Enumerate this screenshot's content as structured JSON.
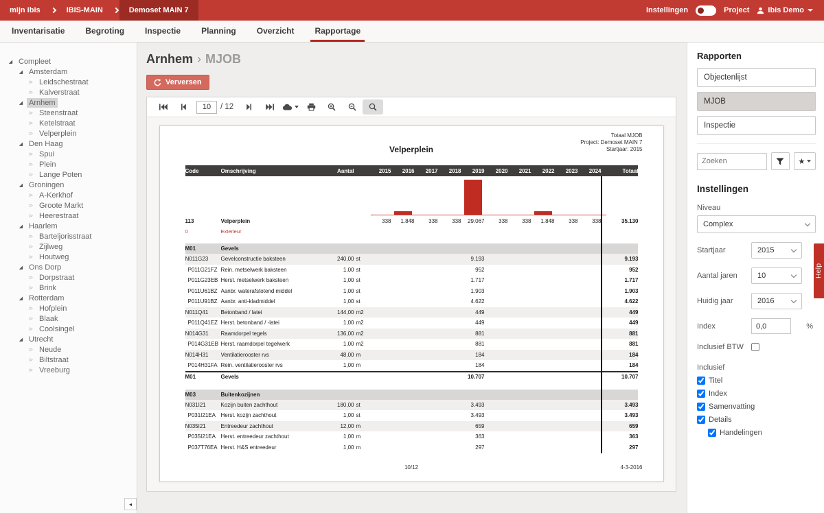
{
  "topbar": {
    "brand": "mijn ibis",
    "crumb1": "IBIS-MAIN",
    "crumb2": "Demoset MAIN 7",
    "settings_label": "Instellingen",
    "project_label": "Project",
    "user_label": "Ibis Demo"
  },
  "tabs": {
    "items": [
      "Inventarisatie",
      "Begroting",
      "Inspectie",
      "Planning",
      "Overzicht",
      "Rapportage"
    ],
    "active": "Rapportage"
  },
  "sidebar": {
    "tree": [
      {
        "label": "Compleet",
        "level": 0,
        "state": "expanded"
      },
      {
        "label": "Amsterdam",
        "level": 1,
        "state": "expanded"
      },
      {
        "label": "Leidschestraat",
        "level": 2,
        "state": "collapsed"
      },
      {
        "label": "Kalverstraat",
        "level": 2,
        "state": "collapsed"
      },
      {
        "label": "Arnhem",
        "level": 1,
        "state": "expanded",
        "selected": true
      },
      {
        "label": "Steenstraat",
        "level": 2,
        "state": "collapsed"
      },
      {
        "label": "Ketelstraat",
        "level": 2,
        "state": "collapsed"
      },
      {
        "label": "Velperplein",
        "level": 2,
        "state": "collapsed"
      },
      {
        "label": "Den Haag",
        "level": 1,
        "state": "expanded"
      },
      {
        "label": "Spui",
        "level": 2,
        "state": "collapsed"
      },
      {
        "label": "Plein",
        "level": 2,
        "state": "collapsed"
      },
      {
        "label": "Lange Poten",
        "level": 2,
        "state": "collapsed"
      },
      {
        "label": "Groningen",
        "level": 1,
        "state": "expanded"
      },
      {
        "label": "A-Kerkhof",
        "level": 2,
        "state": "collapsed"
      },
      {
        "label": "Groote Markt",
        "level": 2,
        "state": "collapsed"
      },
      {
        "label": "Heerestraat",
        "level": 2,
        "state": "collapsed"
      },
      {
        "label": "Haarlem",
        "level": 1,
        "state": "expanded"
      },
      {
        "label": "Barteljorisstraat",
        "level": 2,
        "state": "collapsed"
      },
      {
        "label": "Zijlweg",
        "level": 2,
        "state": "collapsed"
      },
      {
        "label": "Houtweg",
        "level": 2,
        "state": "collapsed"
      },
      {
        "label": "Ons Dorp",
        "level": 1,
        "state": "expanded"
      },
      {
        "label": "Dorpstraat",
        "level": 2,
        "state": "collapsed"
      },
      {
        "label": "Brink",
        "level": 2,
        "state": "collapsed"
      },
      {
        "label": "Rotterdam",
        "level": 1,
        "state": "expanded"
      },
      {
        "label": "Hofplein",
        "level": 2,
        "state": "collapsed"
      },
      {
        "label": "Blaak",
        "level": 2,
        "state": "collapsed"
      },
      {
        "label": "Coolsingel",
        "level": 2,
        "state": "collapsed"
      },
      {
        "label": "Utrecht",
        "level": 1,
        "state": "expanded"
      },
      {
        "label": "Neude",
        "level": 2,
        "state": "collapsed"
      },
      {
        "label": "Biltstraat",
        "level": 2,
        "state": "collapsed"
      },
      {
        "label": "Vreeburg",
        "level": 2,
        "state": "collapsed"
      }
    ]
  },
  "main": {
    "title": "Arnhem",
    "separator": "›",
    "subtitle": "MJOB",
    "refresh_label": "Verversen",
    "toolbar": {
      "page_value": "10",
      "page_total": "/ 12"
    }
  },
  "report": {
    "meta1": "Totaal MJOB",
    "meta2": "Project: Demoset MAIN 7",
    "meta3": "Startjaar: 2015",
    "title": "Velperplein",
    "columns": [
      "Code",
      "Omschrijving",
      "Aantal",
      "2015",
      "2016",
      "2017",
      "2018",
      "2019",
      "2020",
      "2021",
      "2022",
      "2023",
      "2024",
      "Totaal"
    ],
    "summary": {
      "code": "113",
      "name": "Velperplein",
      "values": [
        "338",
        "1.848",
        "338",
        "338",
        "29.067",
        "338",
        "338",
        "1.848",
        "338",
        "338"
      ],
      "total": "35.130"
    },
    "sub_row": {
      "code": "0",
      "name": "Exterieur"
    },
    "sections": [
      {
        "code": "M01",
        "name": "Gevels",
        "rows": [
          {
            "code": "N011G23",
            "name": "Gevelconstructie baksteen",
            "qty": "240,00",
            "unit": "st",
            "y2019": "9.193",
            "total": "9.193",
            "shaded": true
          },
          {
            "code": "P011G21FZ",
            "name": "Rein. metselwerk baksteen",
            "qty": "1,00",
            "unit": "st",
            "y2019": "952",
            "total": "952",
            "shaded": false
          },
          {
            "code": "P011G23EB",
            "name": "Herst. metselwerk baksteen",
            "qty": "1,00",
            "unit": "st",
            "y2019": "1.717",
            "total": "1.717",
            "shaded": false
          },
          {
            "code": "P011U61BZ",
            "name": "Aanbr. waterafstotend middel",
            "qty": "1,00",
            "unit": "st",
            "y2019": "1.903",
            "total": "1.903",
            "shaded": false
          },
          {
            "code": "P011U91BZ",
            "name": "Aanbr. anti-kladmiddel",
            "qty": "1,00",
            "unit": "st",
            "y2019": "4.622",
            "total": "4.622",
            "shaded": false
          },
          {
            "code": "N011Q41",
            "name": "Betonband / latei",
            "qty": "144,00",
            "unit": "m2",
            "y2019": "449",
            "total": "449",
            "shaded": true
          },
          {
            "code": "P011Q41EZ",
            "name": "Herst. betonband / -latei",
            "qty": "1,00",
            "unit": "m2",
            "y2019": "449",
            "total": "449",
            "shaded": false
          },
          {
            "code": "N014G31",
            "name": "Raamdorpel tegels",
            "qty": "136,00",
            "unit": "m2",
            "y2019": "881",
            "total": "881",
            "shaded": true
          },
          {
            "code": "P014G31EB",
            "name": "Herst. raamdorpel tegelwerk",
            "qty": "1,00",
            "unit": "m2",
            "y2019": "881",
            "total": "881",
            "shaded": false
          },
          {
            "code": "N014H31",
            "name": "Ventilatierooster rvs",
            "qty": "48,00",
            "unit": "m",
            "y2019": "184",
            "total": "184",
            "shaded": true
          },
          {
            "code": "P014H31FA",
            "name": "Rein. ventilatierooster rvs",
            "qty": "1,00",
            "unit": "m",
            "y2019": "184",
            "total": "184",
            "shaded": false
          }
        ],
        "total_row": {
          "code": "M01",
          "name": "Gevels",
          "y2019": "10.707",
          "total": "10.707"
        }
      },
      {
        "code": "M03",
        "name": "Buitenkozijnen",
        "rows": [
          {
            "code": "N031I21",
            "name": "Kozijn buiten zachthout",
            "qty": "180,00",
            "unit": "st",
            "y2019": "3.493",
            "total": "3.493",
            "shaded": true
          },
          {
            "code": "P031I21EA",
            "name": "Herst. kozijn zachthout",
            "qty": "1,00",
            "unit": "st",
            "y2019": "3.493",
            "total": "3.493",
            "shaded": false
          },
          {
            "code": "N035I21",
            "name": "Entreedeur zachthout",
            "qty": "12,00",
            "unit": "m",
            "y2019": "659",
            "total": "659",
            "shaded": true
          },
          {
            "code": "P035I21EA",
            "name": "Herst. entreedeur zachthout",
            "qty": "1,00",
            "unit": "m",
            "y2019": "363",
            "total": "363",
            "shaded": false
          },
          {
            "code": "P037T76EA",
            "name": "Herst. H&S entreedeur",
            "qty": "1,00",
            "unit": "m",
            "y2019": "297",
            "total": "297",
            "shaded": false
          }
        ]
      }
    ],
    "footer": {
      "page": "10/12",
      "date": "4-3-2016"
    }
  },
  "chart_data": {
    "type": "bar",
    "title": "Velperplein",
    "categories": [
      "2015",
      "2016",
      "2017",
      "2018",
      "2019",
      "2020",
      "2021",
      "2022",
      "2023",
      "2024"
    ],
    "values": [
      338,
      1848,
      338,
      338,
      29067,
      338,
      338,
      1848,
      338,
      338
    ],
    "total": 35130,
    "bar_color": "#c02b22",
    "legend_position": "none",
    "grid": false
  },
  "rightpanel": {
    "rapporten_title": "Rapporten",
    "reports": [
      {
        "label": "Objectenlijst",
        "selected": false
      },
      {
        "label": "MJOB",
        "selected": true
      },
      {
        "label": "Inspectie",
        "selected": false
      }
    ],
    "search_placeholder": "Zoeken",
    "instellingen_title": "Instellingen",
    "niveau_label": "Niveau",
    "niveau_value": "Complex",
    "startjaar_label": "Startjaar",
    "startjaar_value": "2015",
    "aantal_jaren_label": "Aantal jaren",
    "aantal_jaren_value": "10",
    "huidig_jaar_label": "Huidig jaar",
    "huidig_jaar_value": "2016",
    "index_label": "Index",
    "index_value": "0,0",
    "index_suffix": "%",
    "btw_label": "Inclusief BTW",
    "btw_checked": false,
    "inclusief_label": "Inclusief",
    "inclusief_options": [
      {
        "label": "Titel",
        "checked": true,
        "indent": false
      },
      {
        "label": "Index",
        "checked": true,
        "indent": false
      },
      {
        "label": "Samenvatting",
        "checked": true,
        "indent": false
      },
      {
        "label": "Details",
        "checked": true,
        "indent": false
      },
      {
        "label": "Handelingen",
        "checked": true,
        "indent": true
      }
    ]
  },
  "help_tab": {
    "label": "Help"
  }
}
